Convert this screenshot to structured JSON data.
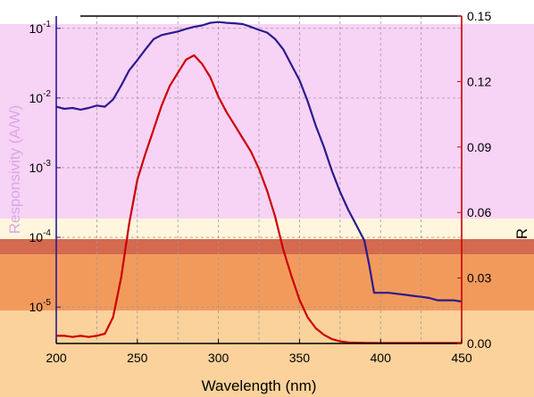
{
  "chart_data": {
    "type": "line",
    "xlabel": "Wavelength (nm)",
    "ylabel_left": "Responsivity (A/W)",
    "ylabel_right": "R",
    "xlim": [
      200,
      450
    ],
    "ylim_left": [
      3e-06,
      0.15
    ],
    "yscale_left": "log",
    "ylim_right": [
      0.0,
      0.15
    ],
    "x_ticks": [
      "200",
      "250",
      "300",
      "350",
      "400",
      "450"
    ],
    "y_left_ticks": [
      {
        "value": 1e-05,
        "base": "10",
        "exp": "-5"
      },
      {
        "value": 0.0001,
        "base": "10",
        "exp": "-4"
      },
      {
        "value": 0.001,
        "base": "10",
        "exp": "-3"
      },
      {
        "value": 0.01,
        "base": "10",
        "exp": "-2"
      },
      {
        "value": 0.1,
        "base": "10",
        "exp": "-1"
      }
    ],
    "y_right_ticks": [
      {
        "value": 0.0,
        "label": "0.00"
      },
      {
        "value": 0.03,
        "label": "0.03"
      },
      {
        "value": 0.06,
        "label": "0.06"
      },
      {
        "value": 0.09,
        "label": "0.09"
      },
      {
        "value": 0.12,
        "label": "0.12"
      },
      {
        "value": 0.15,
        "label": "0.15"
      }
    ],
    "grid": "dashed",
    "colors": {
      "left_axis": "#2b1a8f",
      "right_axis": "#cc0000",
      "grid": "#9a9a9a",
      "responsivity": "#2b1a8f",
      "reflectance": "#cc0000"
    },
    "series": [
      {
        "axis": "left",
        "color": "#2b1a8f",
        "x": [
          200,
          205,
          210,
          215,
          220,
          225,
          230,
          235,
          240,
          245,
          250,
          255,
          260,
          265,
          270,
          275,
          280,
          285,
          290,
          295,
          300,
          305,
          310,
          315,
          320,
          325,
          330,
          335,
          340,
          345,
          350,
          355,
          360,
          365,
          370,
          375,
          380,
          385,
          390,
          393,
          396,
          400,
          405,
          410,
          415,
          420,
          425,
          430,
          435,
          440,
          445,
          450
        ],
        "y": [
          0.0075,
          0.007,
          0.0072,
          0.0068,
          0.0072,
          0.0078,
          0.0075,
          0.0095,
          0.015,
          0.025,
          0.035,
          0.05,
          0.07,
          0.08,
          0.085,
          0.09,
          0.098,
          0.105,
          0.11,
          0.12,
          0.123,
          0.12,
          0.118,
          0.115,
          0.105,
          0.095,
          0.087,
          0.07,
          0.05,
          0.03,
          0.018,
          0.009,
          0.004,
          0.002,
          0.0009,
          0.00045,
          0.00025,
          0.00015,
          9e-05,
          4e-05,
          1.6e-05,
          1.6e-05,
          1.6e-05,
          1.55e-05,
          1.5e-05,
          1.45e-05,
          1.4e-05,
          1.35e-05,
          1.25e-05,
          1.25e-05,
          1.25e-05,
          1.2e-05
        ]
      },
      {
        "axis": "right",
        "color": "#cc0000",
        "x": [
          200,
          205,
          210,
          215,
          220,
          225,
          230,
          235,
          240,
          245,
          250,
          255,
          260,
          265,
          270,
          275,
          280,
          285,
          290,
          295,
          300,
          305,
          310,
          315,
          320,
          325,
          330,
          335,
          340,
          345,
          350,
          355,
          360,
          365,
          370,
          375,
          380,
          390,
          400,
          420,
          450
        ],
        "y": [
          0.0035,
          0.0035,
          0.003,
          0.0035,
          0.003,
          0.0035,
          0.0045,
          0.012,
          0.03,
          0.055,
          0.075,
          0.087,
          0.098,
          0.109,
          0.118,
          0.124,
          0.13,
          0.132,
          0.128,
          0.122,
          0.113,
          0.106,
          0.1,
          0.094,
          0.088,
          0.08,
          0.07,
          0.058,
          0.043,
          0.031,
          0.02,
          0.012,
          0.007,
          0.004,
          0.002,
          0.001,
          0.0005,
          0.0003,
          0.0002,
          0.0002,
          0.0002
        ]
      }
    ]
  }
}
